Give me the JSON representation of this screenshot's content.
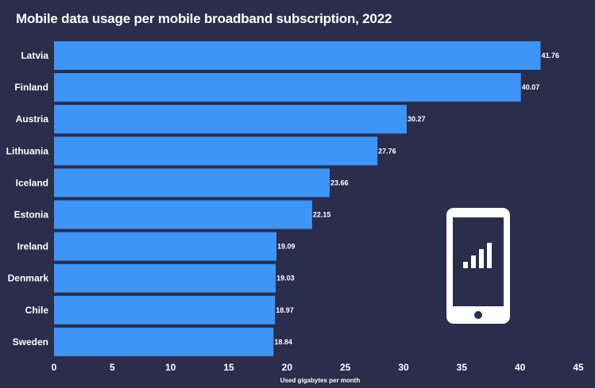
{
  "title": "Mobile data usage per mobile broadband subscription, 2022",
  "colors": {
    "background": "#2b2d4c",
    "bar": "#3d95f7",
    "text": "#ffffff"
  },
  "icon": "smartphone-signal-icon",
  "chart_data": {
    "type": "bar",
    "orientation": "horizontal",
    "title": "Mobile data usage per mobile broadband subscription, 2022",
    "xlabel": "Used gigabytes per month",
    "ylabel": "",
    "xlim": [
      0,
      45
    ],
    "xticks": [
      0,
      5,
      10,
      15,
      20,
      25,
      30,
      35,
      40,
      45
    ],
    "grid": false,
    "categories": [
      "Latvia",
      "Finland",
      "Austria",
      "Lithuania",
      "Iceland",
      "Estonia",
      "Ireland",
      "Denmark",
      "Chile",
      "Sweden"
    ],
    "values": [
      41.76,
      40.07,
      30.27,
      27.76,
      23.66,
      22.15,
      19.09,
      19.03,
      18.97,
      18.84
    ],
    "value_labels": [
      "41.76",
      "40.07",
      "30.27",
      "27.76",
      "23.66",
      "22.15",
      "19.09",
      "19.03",
      "18.97",
      "18.84"
    ]
  }
}
